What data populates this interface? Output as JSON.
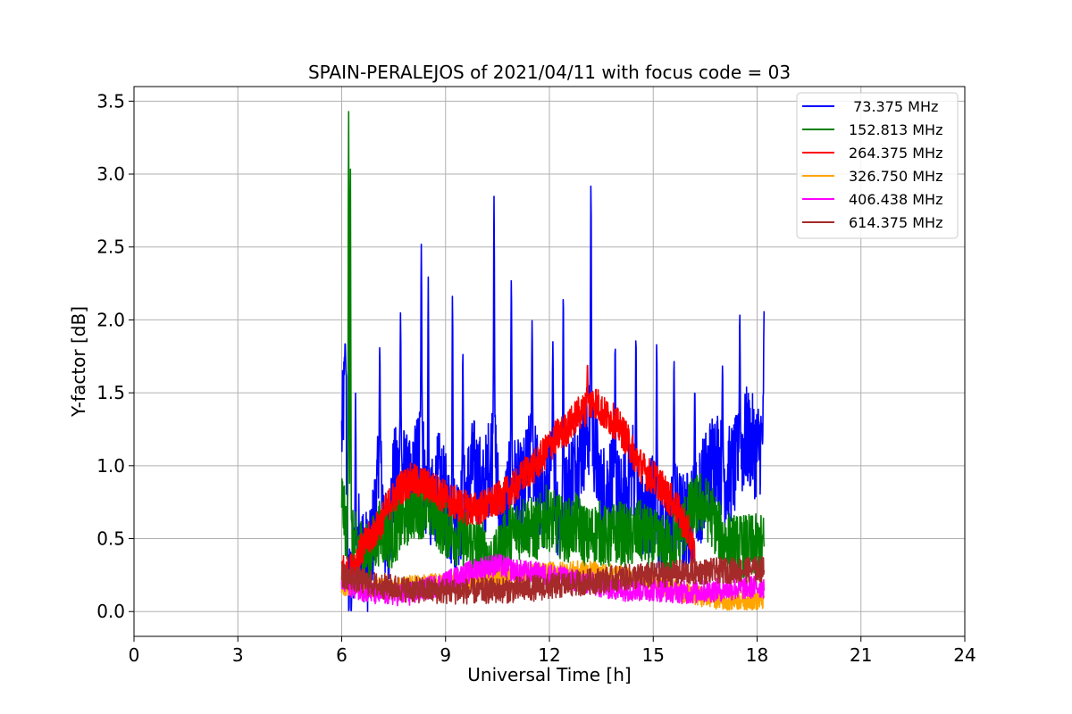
{
  "chart_data": {
    "type": "line",
    "title": "SPAIN-PERALEJOS of 2021/04/11 with focus code = 03",
    "xlabel": "Universal Time [h]",
    "ylabel": "Y-factor [dB]",
    "xlim": [
      0,
      24
    ],
    "ylim": [
      -0.17,
      3.6
    ],
    "xticks": [
      0,
      3,
      6,
      9,
      12,
      15,
      18,
      21,
      24
    ],
    "yticks": [
      0.0,
      0.5,
      1.0,
      1.5,
      2.0,
      2.5,
      3.0,
      3.5
    ],
    "xtick_labels": [
      "0",
      "3",
      "6",
      "9",
      "12",
      "15",
      "18",
      "21",
      "24"
    ],
    "ytick_labels": [
      "0.0",
      "0.5",
      "1.0",
      "1.5",
      "2.0",
      "2.5",
      "3.0",
      "3.5"
    ],
    "grid": true,
    "legend_position": "top-right",
    "series": [
      {
        "name": " 73.375 MHz",
        "color": "#0000ff",
        "x": [
          6.0,
          6.1,
          6.2,
          6.5,
          6.8,
          7.1,
          7.3,
          7.5,
          7.7,
          8.0,
          8.3,
          8.5,
          8.8,
          9.2,
          9.5,
          9.8,
          10.1,
          10.4,
          10.6,
          10.9,
          11.2,
          11.5,
          11.8,
          12.1,
          12.3,
          12.6,
          12.9,
          13.2,
          13.5,
          13.8,
          14.1,
          14.4,
          14.7,
          15.0,
          15.3,
          15.6,
          15.9,
          16.2,
          16.5,
          16.8,
          17.1,
          17.4,
          17.7,
          18.0,
          18.2
        ],
        "y": [
          1.2,
          1.6,
          0.1,
          0.5,
          0.3,
          1.0,
          0.4,
          0.9,
          1.0,
          0.8,
          1.2,
          0.6,
          0.9,
          0.6,
          0.7,
          1.0,
          0.8,
          1.2,
          0.5,
          0.9,
          0.8,
          1.1,
          0.7,
          1.0,
          0.6,
          0.9,
          1.1,
          1.3,
          0.8,
          0.9,
          0.7,
          1.0,
          0.6,
          0.8,
          0.5,
          0.7,
          0.6,
          0.7,
          0.9,
          1.1,
          0.9,
          1.0,
          1.2,
          1.1,
          1.2
        ],
        "peaks": [
          [
            6.1,
            1.85
          ],
          [
            6.4,
            1.5
          ],
          [
            7.1,
            1.82
          ],
          [
            7.7,
            2.05
          ],
          [
            8.3,
            2.52
          ],
          [
            8.5,
            2.3
          ],
          [
            9.2,
            2.18
          ],
          [
            9.5,
            1.8
          ],
          [
            10.4,
            2.85
          ],
          [
            10.9,
            2.3
          ],
          [
            11.5,
            2.0
          ],
          [
            12.1,
            1.85
          ],
          [
            12.4,
            2.21
          ],
          [
            13.2,
            2.94
          ],
          [
            13.9,
            1.85
          ],
          [
            14.5,
            1.9
          ],
          [
            15.1,
            1.85
          ],
          [
            15.6,
            1.75
          ],
          [
            16.2,
            1.55
          ],
          [
            17.0,
            1.7
          ],
          [
            17.5,
            2.06
          ],
          [
            18.2,
            2.06
          ]
        ]
      },
      {
        "name": "152.813 MHz",
        "color": "#008000",
        "x": [
          6.0,
          6.1,
          6.2,
          6.5,
          6.8,
          7.1,
          7.4,
          7.7,
          8.0,
          8.3,
          8.6,
          8.9,
          9.2,
          9.5,
          9.8,
          10.1,
          10.4,
          10.7,
          11.0,
          11.3,
          11.6,
          11.9,
          12.2,
          12.5,
          12.8,
          13.1,
          13.4,
          13.7,
          14.0,
          14.3,
          14.6,
          14.9,
          15.2,
          15.5,
          15.8,
          16.1,
          16.4,
          16.7,
          17.0,
          17.3,
          17.6,
          17.9,
          18.2
        ],
        "y": [
          0.8,
          0.6,
          0.5,
          0.45,
          0.4,
          0.55,
          0.5,
          0.6,
          0.7,
          0.72,
          0.7,
          0.6,
          0.55,
          0.5,
          0.45,
          0.4,
          0.3,
          0.5,
          0.55,
          0.6,
          0.55,
          0.65,
          0.6,
          0.55,
          0.6,
          0.5,
          0.55,
          0.5,
          0.55,
          0.5,
          0.55,
          0.5,
          0.45,
          0.45,
          0.55,
          0.7,
          0.75,
          0.65,
          0.5,
          0.45,
          0.45,
          0.45,
          0.45
        ],
        "peaks": [
          [
            6.2,
            3.43
          ],
          [
            6.25,
            3.1
          ]
        ]
      },
      {
        "name": "264.375 MHz",
        "color": "#ff0000",
        "x": [
          6.0,
          6.2,
          6.5,
          6.8,
          7.1,
          7.4,
          7.7,
          8.0,
          8.3,
          8.6,
          8.9,
          9.2,
          9.5,
          9.8,
          10.1,
          10.4,
          10.7,
          11.0,
          11.3,
          11.6,
          11.9,
          12.2,
          12.5,
          12.8,
          13.1,
          13.3,
          13.6,
          13.9,
          14.2,
          14.5,
          14.8,
          15.1,
          15.4,
          15.7,
          16.0,
          16.2
        ],
        "y": [
          0.3,
          0.25,
          0.4,
          0.5,
          0.6,
          0.75,
          0.85,
          0.9,
          0.88,
          0.85,
          0.8,
          0.75,
          0.72,
          0.7,
          0.72,
          0.75,
          0.8,
          0.85,
          0.95,
          1.0,
          1.1,
          1.2,
          1.25,
          1.35,
          1.4,
          1.45,
          1.35,
          1.3,
          1.2,
          1.05,
          0.95,
          0.9,
          0.8,
          0.7,
          0.55,
          0.4
        ],
        "peaks": [
          [
            13.1,
            1.7
          ]
        ]
      },
      {
        "name": "326.750 MHz",
        "color": "#ffa500",
        "x": [
          6.0,
          7.0,
          8.0,
          9.0,
          10.0,
          11.0,
          12.0,
          13.0,
          14.0,
          15.0,
          16.0,
          17.0,
          18.0,
          18.2
        ],
        "y": [
          0.18,
          0.17,
          0.18,
          0.2,
          0.22,
          0.25,
          0.27,
          0.28,
          0.25,
          0.2,
          0.12,
          0.08,
          0.08,
          0.08
        ]
      },
      {
        "name": "406.438 MHz",
        "color": "#ff00ff",
        "x": [
          6.0,
          7.0,
          8.0,
          9.0,
          10.0,
          10.5,
          11.0,
          12.0,
          13.0,
          14.0,
          15.0,
          16.0,
          17.0,
          18.0,
          18.2
        ],
        "y": [
          0.2,
          0.12,
          0.12,
          0.2,
          0.3,
          0.32,
          0.28,
          0.25,
          0.2,
          0.15,
          0.15,
          0.13,
          0.15,
          0.17,
          0.17
        ]
      },
      {
        "name": "614.375 MHz",
        "color": "#a52a2a",
        "x": [
          6.0,
          7.0,
          8.0,
          9.0,
          10.0,
          11.0,
          12.0,
          13.0,
          14.0,
          15.0,
          16.0,
          17.0,
          18.0,
          18.2
        ],
        "y": [
          0.25,
          0.18,
          0.15,
          0.14,
          0.14,
          0.15,
          0.17,
          0.2,
          0.23,
          0.25,
          0.27,
          0.28,
          0.29,
          0.29
        ]
      }
    ]
  }
}
